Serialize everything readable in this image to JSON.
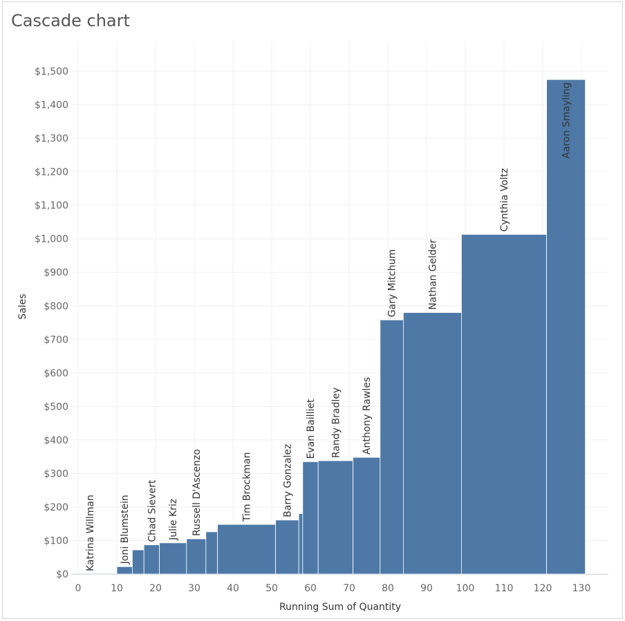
{
  "title": "Cascade chart",
  "chart_data": {
    "type": "bar",
    "subtype": "variable-width cascade",
    "title": "Cascade chart",
    "xlabel": "Running Sum of Quantity",
    "ylabel": "Sales",
    "xlim": [
      0,
      130
    ],
    "ylim": [
      0,
      1500
    ],
    "x_ticks": [
      0,
      10,
      20,
      30,
      40,
      50,
      60,
      70,
      80,
      90,
      100,
      110,
      120,
      130
    ],
    "x_tick_labels": [
      "0",
      "10",
      "20",
      "30",
      "40",
      "50",
      "60",
      "70",
      "80",
      "90",
      "100",
      "110",
      "120",
      "130"
    ],
    "y_ticks": [
      0,
      100,
      200,
      300,
      400,
      500,
      600,
      700,
      800,
      900,
      1000,
      1100,
      1200,
      1300,
      1400,
      1500
    ],
    "y_tick_labels": [
      "$0",
      "$100",
      "$200",
      "$300",
      "$400",
      "$500",
      "$600",
      "$700",
      "$800",
      "$900",
      "$1,000",
      "$1,100",
      "$1,200",
      "$1,300",
      "$1,400",
      "$1,500"
    ],
    "grid": true,
    "bar_color": "#4e79a7",
    "bars": [
      {
        "label": "Katrina Willman",
        "x_start": -1,
        "x_end": 7,
        "value": 0
      },
      {
        "label": "",
        "x_start": 7,
        "x_end": 10,
        "value": 2
      },
      {
        "label": "Joni Blumstein",
        "x_start": 10,
        "x_end": 14,
        "value": 22
      },
      {
        "label": "",
        "x_start": 14,
        "x_end": 17,
        "value": 72
      },
      {
        "label": "Chad Sievert",
        "x_start": 17,
        "x_end": 21,
        "value": 87
      },
      {
        "label": "Julie Kriz",
        "x_start": 21,
        "x_end": 28,
        "value": 93
      },
      {
        "label": "Russell D'Ascenzo",
        "x_start": 28,
        "x_end": 33,
        "value": 105
      },
      {
        "label": "",
        "x_start": 33,
        "x_end": 36,
        "value": 126
      },
      {
        "label": "Tim Brockman",
        "x_start": 36,
        "x_end": 51,
        "value": 148
      },
      {
        "label": "Barry Gonzalez",
        "x_start": 51,
        "x_end": 57,
        "value": 161
      },
      {
        "label": "",
        "x_start": 57,
        "x_end": 58,
        "value": 180
      },
      {
        "label": "Evan Bailliet",
        "x_start": 58,
        "x_end": 62,
        "value": 335
      },
      {
        "label": "Randy Bradley",
        "x_start": 62,
        "x_end": 71,
        "value": 338
      },
      {
        "label": "Anthony Rawles",
        "x_start": 71,
        "x_end": 78,
        "value": 348
      },
      {
        "label": "Gary Mitchum",
        "x_start": 78,
        "x_end": 84,
        "value": 758
      },
      {
        "label": "Nathan Gelder",
        "x_start": 84,
        "x_end": 99,
        "value": 780
      },
      {
        "label": "Cynthia Voltz",
        "x_start": 99,
        "x_end": 121,
        "value": 1013
      },
      {
        "label": "Aaron Smayling",
        "x_start": 121,
        "x_end": 131,
        "value": 1475,
        "label_inside": true
      }
    ]
  }
}
